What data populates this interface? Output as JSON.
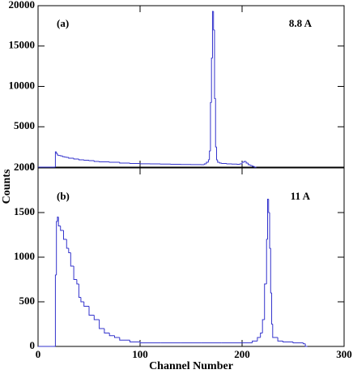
{
  "chart_data": [
    {
      "type": "step",
      "label": "(a)",
      "annotation": "8.8 A",
      "ylabel": "Counts",
      "color": "#3333cc",
      "x": [
        0,
        16,
        17,
        18,
        19,
        20,
        22,
        24,
        26,
        28,
        30,
        35,
        40,
        45,
        50,
        55,
        60,
        70,
        80,
        90,
        100,
        110,
        120,
        130,
        140,
        150,
        160,
        163,
        165,
        167,
        168,
        169,
        170,
        171,
        172,
        173,
        174,
        175,
        176,
        178,
        180,
        185,
        190,
        195,
        198,
        200,
        202,
        204,
        206,
        208,
        210,
        212
      ],
      "values": [
        0,
        0,
        1900,
        1700,
        1500,
        1450,
        1400,
        1300,
        1250,
        1200,
        1100,
        1000,
        900,
        850,
        800,
        700,
        650,
        600,
        500,
        450,
        420,
        400,
        380,
        350,
        330,
        320,
        300,
        400,
        600,
        900,
        2000,
        8000,
        13500,
        19300,
        17000,
        8500,
        2500,
        900,
        600,
        500,
        450,
        400,
        380,
        350,
        400,
        600,
        700,
        500,
        300,
        200,
        100,
        0
      ],
      "xlim": [
        0,
        300
      ],
      "xticks": [
        0,
        100,
        200,
        300
      ],
      "ylim": [
        0,
        20000
      ],
      "yticks": [
        0,
        5000,
        10000,
        15000,
        20000
      ]
    },
    {
      "type": "step",
      "label": "(b)",
      "annotation": "11 A",
      "xlabel": "Channel Number",
      "color": "#3333cc",
      "x": [
        0,
        16,
        17,
        18,
        19,
        20,
        22,
        25,
        28,
        30,
        32,
        35,
        38,
        40,
        42,
        45,
        50,
        55,
        60,
        65,
        70,
        75,
        80,
        90,
        100,
        120,
        140,
        160,
        180,
        200,
        210,
        215,
        218,
        220,
        222,
        224,
        225,
        226,
        227,
        228,
        229,
        230,
        235,
        240,
        250,
        260,
        262
      ],
      "values": [
        0,
        0,
        800,
        1400,
        1450,
        1350,
        1300,
        1200,
        1100,
        1050,
        900,
        750,
        700,
        550,
        500,
        450,
        350,
        300,
        200,
        150,
        120,
        100,
        70,
        50,
        40,
        40,
        40,
        40,
        40,
        40,
        60,
        100,
        150,
        300,
        700,
        1200,
        1650,
        1500,
        1100,
        600,
        250,
        100,
        60,
        50,
        40,
        30,
        0
      ],
      "xlim": [
        0,
        300
      ],
      "xticks": [
        0,
        100,
        200,
        300
      ],
      "ylim": [
        0,
        2000
      ],
      "yticks": [
        0,
        500,
        1000,
        1500,
        2000
      ]
    }
  ]
}
